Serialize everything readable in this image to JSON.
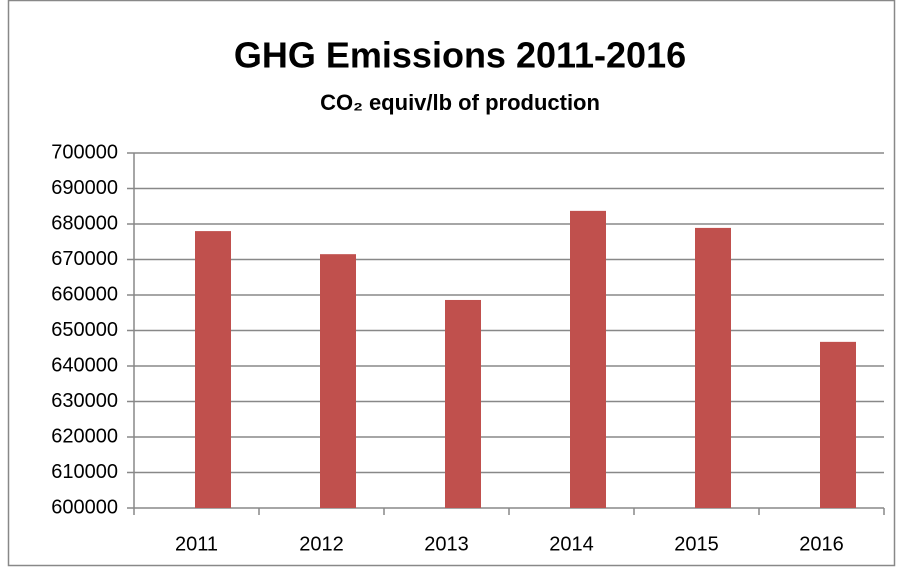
{
  "chart_data": {
    "type": "bar",
    "title": "GHG Emissions  2011-2016",
    "subtitle": "CO₂ equiv/lb of production",
    "categories": [
      "2011",
      "2012",
      "2013",
      "2014",
      "2015",
      "2016"
    ],
    "values": [
      678000,
      671500,
      658600,
      683700,
      678900,
      646800
    ],
    "color": "#c0504d",
    "ylim": [
      600000,
      700000
    ],
    "yticks": [
      600000,
      610000,
      620000,
      630000,
      640000,
      650000,
      660000,
      670000,
      680000,
      690000,
      700000
    ],
    "grid": true
  }
}
